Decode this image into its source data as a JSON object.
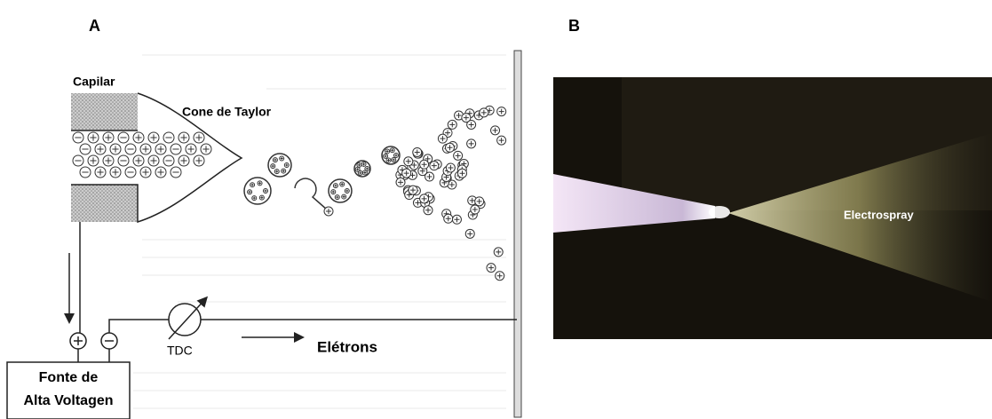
{
  "panels": [
    {
      "label": "A",
      "labels": {
        "capillary": "Capilar",
        "cone": "Cone de Taylor",
        "detector": "TDC",
        "electrons": "Elétrons",
        "source_line1": "Fonte de",
        "source_line2": "Alta Voltagen"
      }
    },
    {
      "label": "B",
      "labels": {
        "spray": "Electrospray"
      }
    }
  ]
}
